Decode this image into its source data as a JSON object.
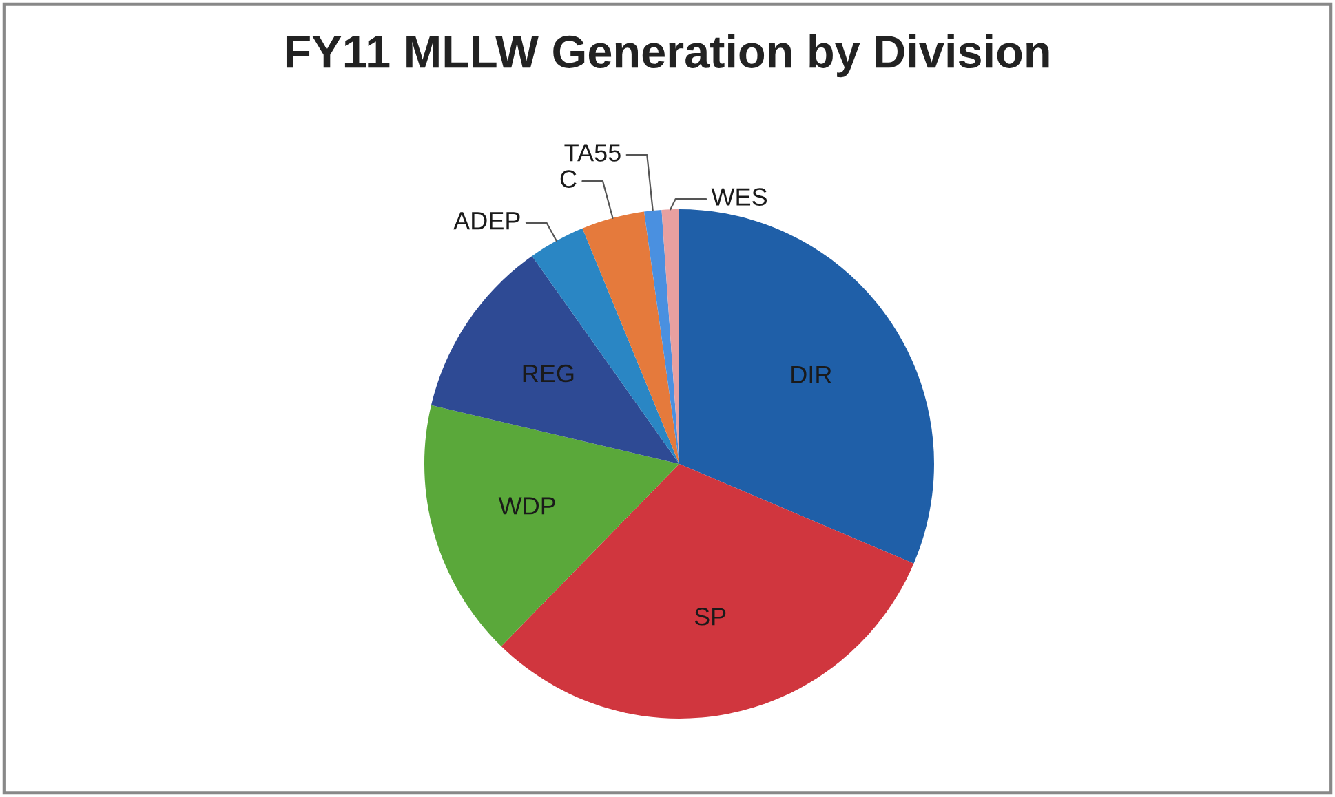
{
  "chart_data": {
    "type": "pie",
    "title": "FY11 MLLW Generation by Division",
    "categories": [
      "DIR",
      "SP",
      "WDP",
      "REG",
      "ADEP",
      "C",
      "TA55",
      "WES"
    ],
    "values": [
      31.4,
      30.9,
      16.4,
      11.5,
      3.6,
      4.0,
      1.1,
      1.1
    ],
    "colors": [
      "#1f5fa8",
      "#d0363e",
      "#5aa83a",
      "#2e4a94",
      "#2a86c4",
      "#e57a3c",
      "#4a90e0",
      "#e8a0a0"
    ]
  }
}
